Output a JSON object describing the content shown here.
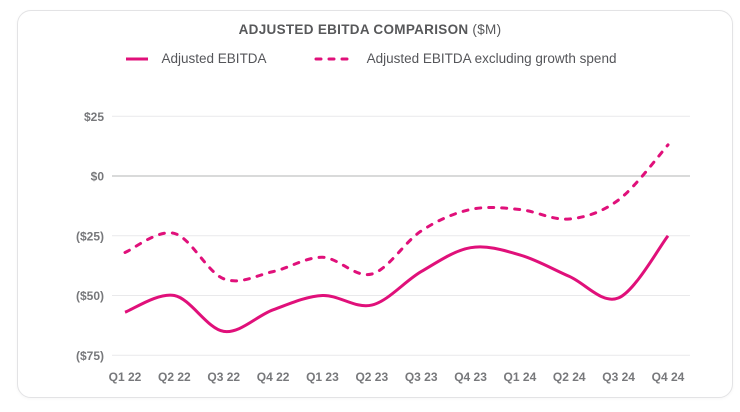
{
  "card": {
    "title": "ADJUSTED EBITDA COMPARISON",
    "title_suffix": "($M)"
  },
  "legend": [
    {
      "label": "Adjusted EBITDA",
      "style": "solid"
    },
    {
      "label": "Adjusted EBITDA excluding growth spend",
      "style": "dashed"
    }
  ],
  "colors": {
    "line": "#e0107a",
    "grid": "#e9e9eb",
    "zero_line": "#b3b4b6",
    "axis_text": "#77787b",
    "title_text": "#57585a",
    "card_border": "#e3e3e5"
  },
  "chart_data": {
    "type": "line",
    "title": "ADJUSTED EBITDA COMPARISON ($M)",
    "categories": [
      "Q1 22",
      "Q2 22",
      "Q3 22",
      "Q4 22",
      "Q1 23",
      "Q2 23",
      "Q3 23",
      "Q4 23",
      "Q1 24",
      "Q2 24",
      "Q3 24",
      "Q4 24"
    ],
    "series": [
      {
        "name": "Adjusted EBITDA",
        "style": "solid",
        "values": [
          -57,
          -50,
          -65,
          -56,
          -50,
          -54,
          -40,
          -30,
          -33,
          -42,
          -51,
          -25
        ]
      },
      {
        "name": "Adjusted EBITDA excluding growth spend",
        "style": "dashed",
        "values": [
          -32,
          -24,
          -43,
          -40,
          -34,
          -41,
          -23,
          -14,
          -14,
          -18,
          -10,
          13
        ]
      }
    ],
    "y_ticks": [
      {
        "value": 25,
        "label": "$25"
      },
      {
        "value": 0,
        "label": "$0"
      },
      {
        "value": -25,
        "label": "($25)"
      },
      {
        "value": -50,
        "label": "($50)"
      },
      {
        "value": -75,
        "label": "($75)"
      }
    ],
    "ylim": [
      -75,
      25
    ],
    "grid": true,
    "legend_position": "top"
  }
}
